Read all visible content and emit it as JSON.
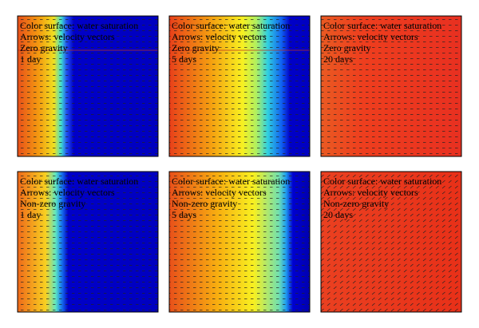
{
  "panels": [
    {
      "lines": [
        "Color surface: water saturation",
        "Arrows: velocity vectors",
        "Zero gravity",
        "1 day"
      ]
    },
    {
      "lines": [
        "Color surface: water saturation",
        "Arrows: velocity vectors",
        "Zero gravity",
        "5 days"
      ]
    },
    {
      "lines": [
        "Color surface: water saturation",
        "Arrows: velocity vectors",
        "Zero gravity",
        "20 days"
      ]
    },
    {
      "lines": [
        "Color surface: water saturation",
        "Arrows: velocity vectors",
        "Non-zero gravity",
        "1 day"
      ]
    },
    {
      "lines": [
        "Color surface: water saturation",
        "Arrows: velocity vectors",
        "Non-zero gravity",
        "5 days"
      ]
    },
    {
      "lines": [
        "Color surface: water saturation",
        "Arrows: velocity vectors",
        "Non-zero gravity",
        "20 days"
      ]
    }
  ]
}
